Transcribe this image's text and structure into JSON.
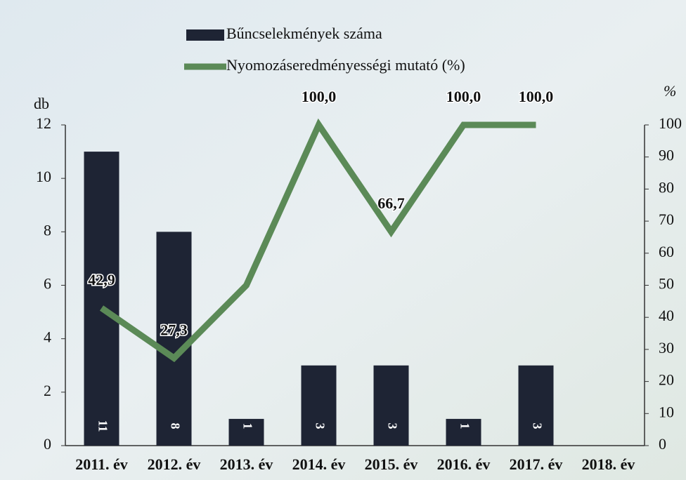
{
  "chart_data": {
    "type": "bar-line",
    "categories": [
      "2011. év",
      "2012. év",
      "2013. év",
      "2014. év",
      "2015. év",
      "2016. év",
      "2017. év",
      "2018. év"
    ],
    "series": [
      {
        "name": "Bűncselekmények száma",
        "type": "bar",
        "color": "#1e2434",
        "values": [
          11,
          8,
          1,
          3,
          3,
          1,
          3,
          null
        ]
      },
      {
        "name": "Nyomozáseredményességi mutató (%)",
        "type": "line",
        "axis": "y2",
        "color": "#5b8a57",
        "values": [
          42.9,
          27.3,
          50,
          100,
          66.7,
          100,
          100,
          null
        ],
        "value_labels": [
          "42,9",
          "27,3",
          null,
          "100,0",
          "66,7",
          "100,0",
          "100,0",
          null
        ]
      }
    ],
    "y_label": "db",
    "y2_label": "%",
    "ylim": [
      0,
      12
    ],
    "yticks": [
      0,
      2,
      4,
      6,
      8,
      10,
      12
    ],
    "y2lim": [
      0,
      100
    ],
    "y2ticks": [
      0,
      10,
      20,
      30,
      40,
      50,
      60,
      70,
      80,
      90,
      100
    ]
  }
}
